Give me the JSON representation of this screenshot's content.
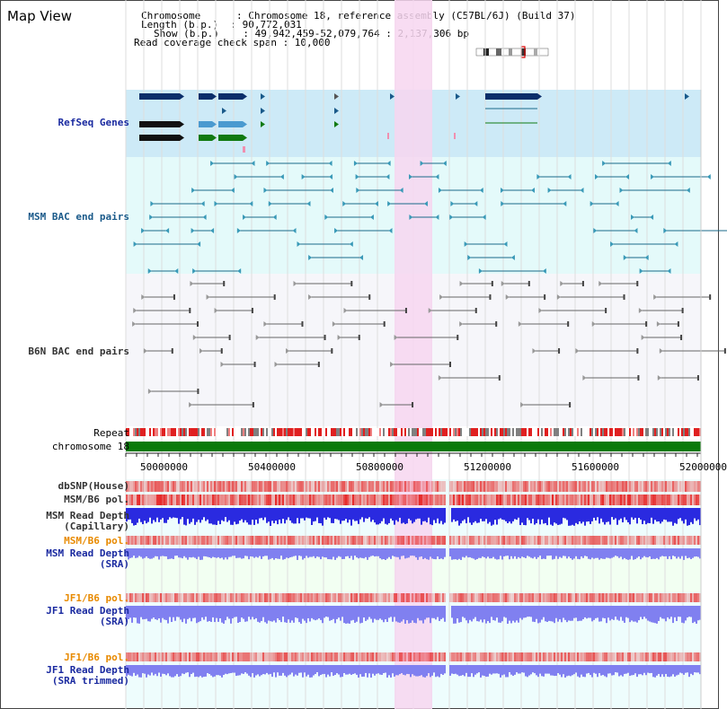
{
  "title": "Map View",
  "header": {
    "lines": [
      "Chromosome      : Chromosome 18, reference assembly (C57BL/6J) (Build 37)",
      "Length (b.p.)  : 90,772,031",
      "Show (b.p.)    : 49,942,459-52,079,764 : 2,137,306 bp",
      "Read coverage check span : 10,000"
    ]
  },
  "tracks": {
    "refseq": "RefSeq Genes",
    "msm_bac": "MSM BAC end pairs",
    "b6n_bac": "B6N BAC end pairs",
    "repeat": "Repeat",
    "chromosome": "chromosome 18",
    "dbsnp": "dbSNP(House)",
    "msm_b6_pol_1": "MSM/B6 pol.",
    "msm_read_cap_1": "MSM Read Depth",
    "msm_read_cap_2": "(Capillary)",
    "msm_b6_pol_2": "MSM/B6 pol.",
    "msm_read_sra_1": "MSM Read Depth",
    "msm_read_sra_2": "(SRA)",
    "jf1_b6_pol_1": "JF1/B6 pol.",
    "jf1_read_sra_1": "JF1 Read Depth",
    "jf1_read_sra_2": "(SRA)",
    "jf1_b6_pol_2": "JF1/B6 pol.",
    "jf1_read_trim_1": "JF1 Read Depth",
    "jf1_read_trim_2": "(SRA trimmed)"
  },
  "axis": {
    "ticks": [
      "50000000",
      "50400000",
      "50800000",
      "51200000",
      "51600000",
      "52000000"
    ]
  },
  "colors": {
    "refseq_bg": "#cdeaf7",
    "bac_bg": "#e4fafa",
    "highlight": "#f7d6f0",
    "label_blue": "#1a2aa0",
    "label_orange": "#e88a00",
    "label_gray": "#333333",
    "chromosome_green": "#0a7a0a",
    "depth_blue": "#2a2ae0",
    "depth_light": "#8080f0"
  }
}
